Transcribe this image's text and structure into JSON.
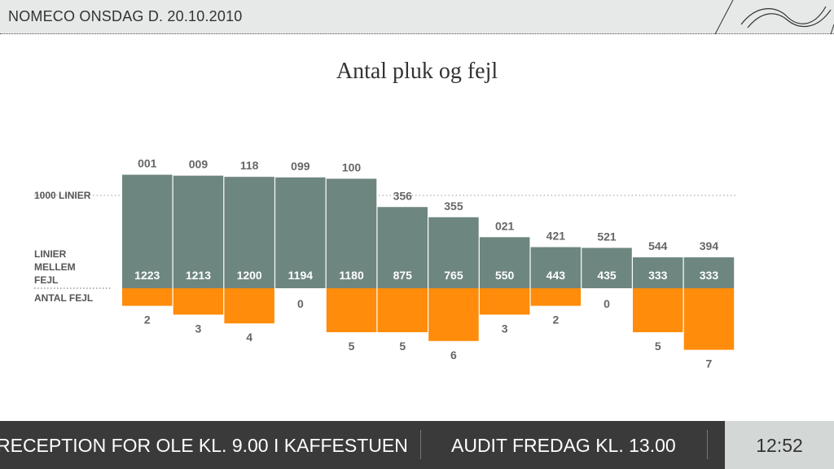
{
  "header": {
    "title": "NOMECO ONSDAG D. 20.10.2010"
  },
  "chart_data": {
    "type": "bar",
    "title": "Antal pluk og fejl",
    "reference_line": {
      "value": 1000,
      "label": "1000 LINIER"
    },
    "labels": {
      "lines_between_errors": [
        "LINIER",
        "MELLEM",
        "FEJL"
      ],
      "error_count": "ANTAL FEJL"
    },
    "categories": [
      "001",
      "009",
      "118",
      "099",
      "100",
      "356",
      "355",
      "021",
      "421",
      "521",
      "544",
      "394"
    ],
    "series": [
      {
        "name": "LINIER MELLEM FEJL",
        "values": [
          1223,
          1213,
          1200,
          1194,
          1180,
          875,
          765,
          550,
          443,
          435,
          333,
          333
        ]
      },
      {
        "name": "ANTAL FEJL",
        "values": [
          2,
          3,
          4,
          0,
          5,
          5,
          6,
          3,
          2,
          0,
          5,
          7
        ]
      }
    ],
    "colors": {
      "lines": "#6e8680",
      "errors": "#ff8c0a"
    }
  },
  "ticker": {
    "items": [
      "RECEPTION FOR OLE KL. 9.00 I KAFFESTUEN",
      "AUDIT FREDAG KL. 13.00"
    ]
  },
  "clock": "12:52"
}
